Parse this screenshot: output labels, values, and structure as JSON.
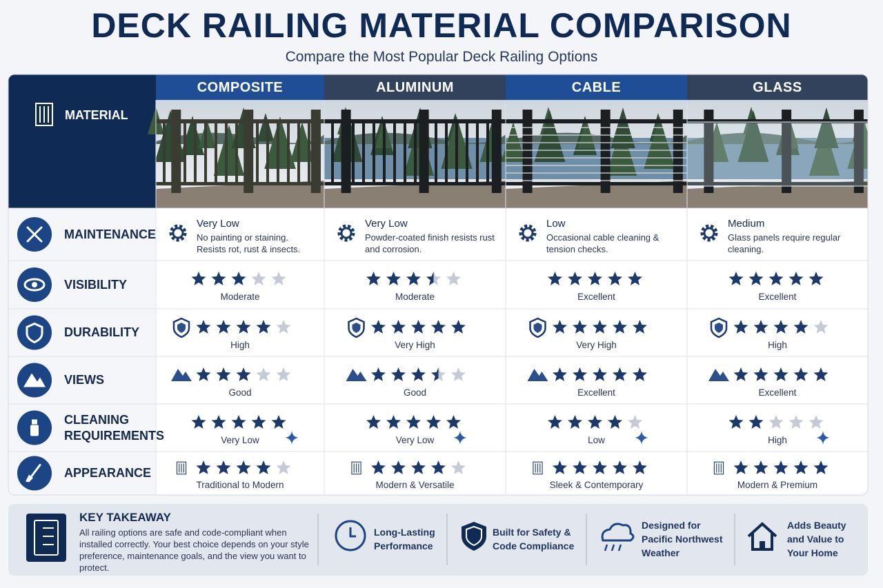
{
  "header": {
    "title": "DECK RAILING MATERIAL COMPARISON",
    "subtitle": "Compare the Most Popular Deck Railing Options"
  },
  "table": {
    "corner": "MATERIAL",
    "columns": [
      "COMPOSITE",
      "ALUMINUM",
      "CABLE",
      "GLASS"
    ],
    "maintenance": {
      "label": "MAINTENANCE",
      "cells": [
        {
          "level": "Very Low",
          "text": "No painting or staining. Resists rot, rust & insects."
        },
        {
          "level": "Very Low",
          "text": "Powder-coated finish resists rust and corrosion."
        },
        {
          "level": "Low",
          "text": "Occasional cable cleaning & tension checks."
        },
        {
          "level": "Medium",
          "text": "Glass panels require regular cleaning."
        }
      ]
    },
    "rating_rows": [
      {
        "label": "VISIBILITY",
        "ratings": [
          3,
          3.5,
          5,
          5
        ],
        "texts": [
          "Moderate",
          "Moderate",
          "Excellent",
          "Excellent"
        ]
      },
      {
        "label": "DURABILITY",
        "ratings": [
          4,
          5,
          5,
          4
        ],
        "texts": [
          "High",
          "Very High",
          "Very High",
          "High"
        ]
      },
      {
        "label": "VIEWS",
        "ratings": [
          3,
          3.5,
          5,
          5
        ],
        "texts": [
          "Good",
          "Good",
          "Excellent",
          "Excellent"
        ]
      },
      {
        "label": "CLEANING REQUIREMENTS",
        "ratings": [
          5,
          5,
          4,
          2
        ],
        "texts": [
          "Very Low",
          "Very Low",
          "Low",
          "High"
        ]
      },
      {
        "label": "APPEARANCE",
        "ratings": [
          4,
          4,
          5,
          5
        ],
        "texts": [
          "Traditional to Modern",
          "Modern & Versatile",
          "Sleek & Contemporary",
          "Modern & Premium"
        ]
      }
    ]
  },
  "footer": {
    "title": "KEY TAKEAWAY",
    "text": "All railing options are safe and code-compliant when installed correctly. Your best choice depends on your style preference, maintenance goals, and the view you want to protect.",
    "features": [
      "Long-Lasting Performance",
      "Built for Safety & Code Compliance",
      "Designed for Pacific Northwest Weather",
      "Adds Beauty and Value to Your Home"
    ]
  }
}
